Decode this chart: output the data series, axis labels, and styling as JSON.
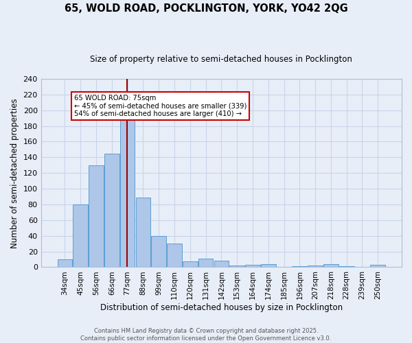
{
  "title1": "65, WOLD ROAD, POCKLINGTON, YORK, YO42 2QG",
  "title2": "Size of property relative to semi-detached houses in Pocklington",
  "xlabel": "Distribution of semi-detached houses by size in Pocklington",
  "ylabel": "Number of semi-detached properties",
  "categories": [
    "34sqm",
    "45sqm",
    "56sqm",
    "66sqm",
    "77sqm",
    "88sqm",
    "99sqm",
    "110sqm",
    "120sqm",
    "131sqm",
    "142sqm",
    "153sqm",
    "164sqm",
    "174sqm",
    "185sqm",
    "196sqm",
    "207sqm",
    "218sqm",
    "228sqm",
    "239sqm",
    "250sqm"
  ],
  "values": [
    10,
    80,
    130,
    145,
    200,
    89,
    40,
    30,
    7,
    11,
    8,
    2,
    3,
    4,
    0,
    1,
    2,
    4,
    1,
    0,
    3
  ],
  "bar_color": "#aec6e8",
  "bar_edge_color": "#5a9fd4",
  "background_color": "#e8eef8",
  "grid_color": "#c8d4e8",
  "red_line_x": 3.97,
  "annotation_text_line1": "65 WOLD ROAD: 75sqm",
  "annotation_text_line2": "← 45% of semi-detached houses are smaller (339)",
  "annotation_text_line3": "54% of semi-detached houses are larger (410) →",
  "annotation_box_color": "#ffffff",
  "annotation_box_edge": "#cc0000",
  "footer1": "Contains HM Land Registry data © Crown copyright and database right 2025.",
  "footer2": "Contains public sector information licensed under the Open Government Licence v3.0.",
  "ylim": [
    0,
    240
  ],
  "yticks": [
    0,
    20,
    40,
    60,
    80,
    100,
    120,
    140,
    160,
    180,
    200,
    220,
    240
  ]
}
